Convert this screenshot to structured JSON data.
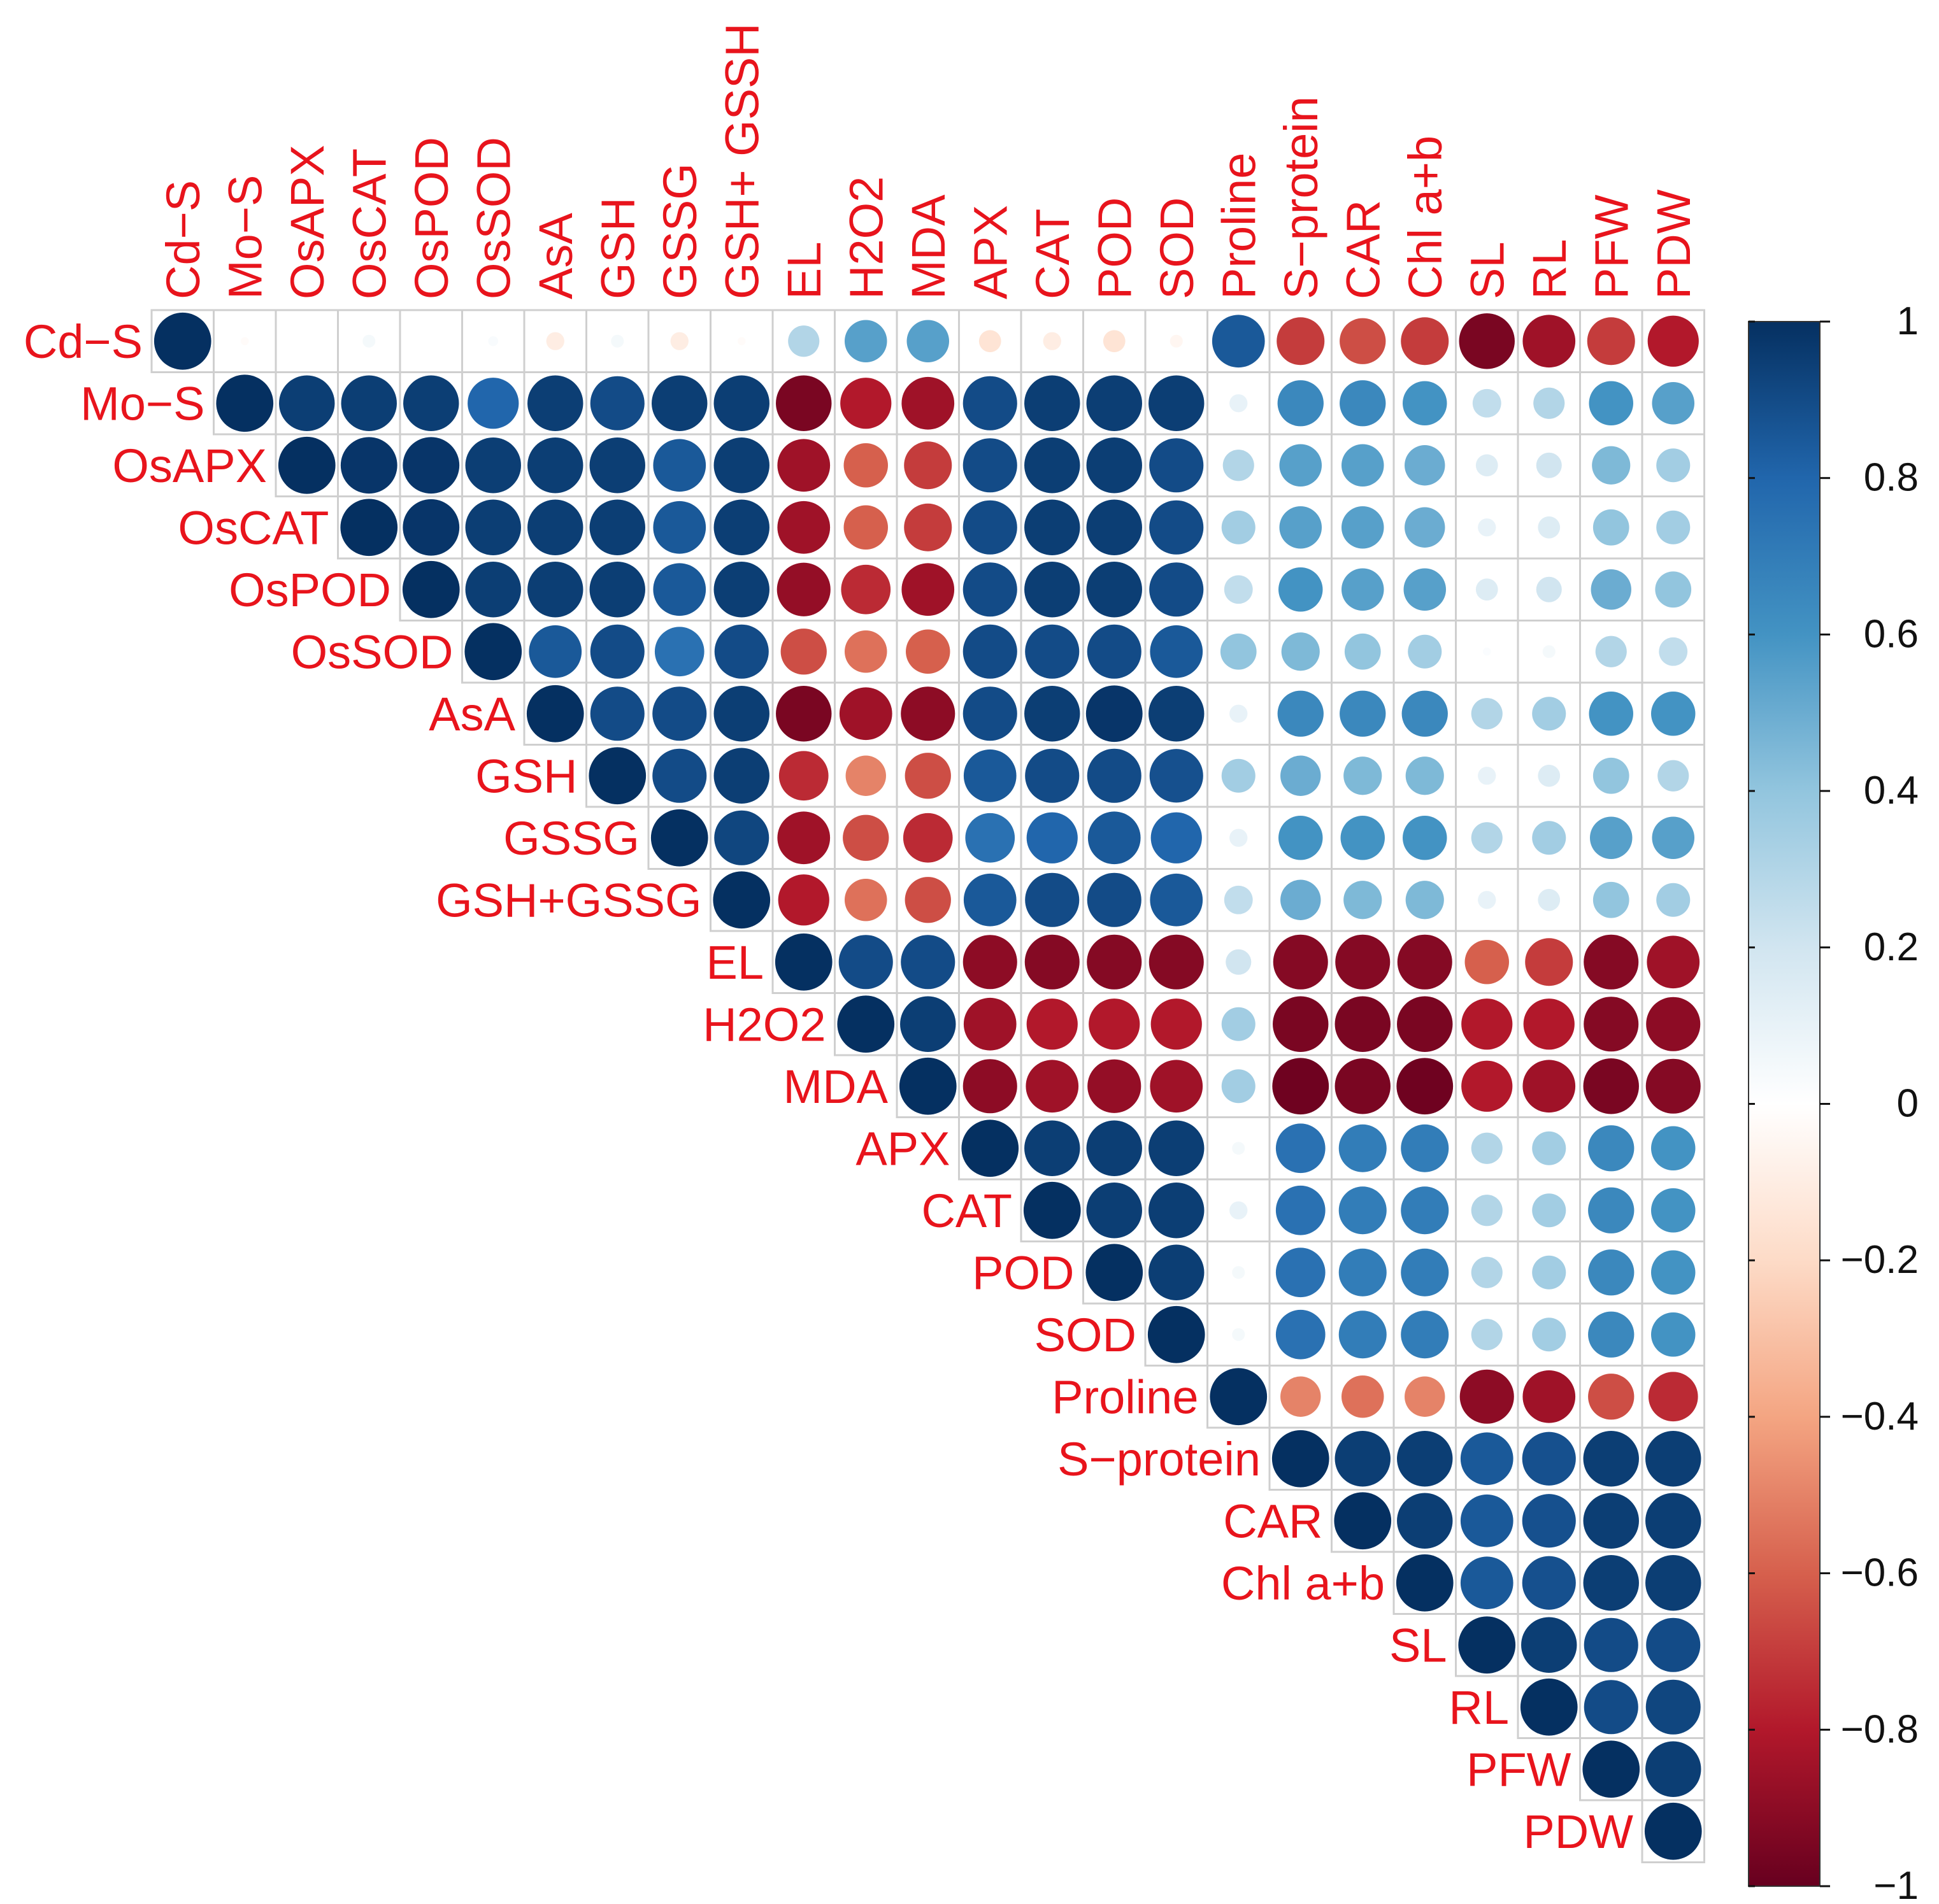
{
  "chart_data": {
    "type": "heatmap",
    "style": "corrplot-upper-circle",
    "labels": [
      "Cd−S",
      "Mo−S",
      "OsAPX",
      "OsCAT",
      "OsPOD",
      "OsSOD",
      "AsA",
      "GSH",
      "GSSG",
      "GSH+GSSG",
      "EL",
      "H2O2",
      "MDA",
      "APX",
      "CAT",
      "POD",
      "SOD",
      "Proline",
      "S−protein",
      "CAR",
      "Chl a+b",
      "SL",
      "RL",
      "PFW",
      "PDW"
    ],
    "column_labels": [
      "Cd−S",
      "Mo−S",
      "OsAPX",
      "OsCAT",
      "OsPOD",
      "OsSOD",
      "AsA",
      "GSH",
      "GSSG",
      "GSH+ GSSH",
      "EL",
      "H2O2",
      "MDA",
      "APX",
      "CAT",
      "POD",
      "SOD",
      "Proline",
      "S−protein",
      "CAR",
      "Chl a+b",
      "SL",
      "RL",
      "PFW",
      "PDW"
    ],
    "values": [
      [
        1.0,
        -0.02,
        0.0,
        0.05,
        0.0,
        0.03,
        -0.1,
        0.05,
        -0.1,
        -0.02,
        0.3,
        0.55,
        0.55,
        -0.15,
        -0.1,
        -0.15,
        -0.05,
        0.85,
        -0.7,
        -0.65,
        -0.7,
        -0.95,
        -0.85,
        -0.7,
        -0.8
      ],
      [
        null,
        1.0,
        0.95,
        0.95,
        0.95,
        0.8,
        0.95,
        0.9,
        0.95,
        0.95,
        -0.95,
        -0.8,
        -0.85,
        0.9,
        0.95,
        0.95,
        0.95,
        0.1,
        0.65,
        0.65,
        0.6,
        0.25,
        0.3,
        0.6,
        0.55
      ],
      [
        null,
        null,
        1.0,
        0.98,
        0.98,
        0.95,
        0.95,
        0.95,
        0.85,
        0.95,
        -0.85,
        -0.6,
        -0.7,
        0.9,
        0.95,
        0.95,
        0.9,
        0.3,
        0.55,
        0.55,
        0.5,
        0.15,
        0.2,
        0.45,
        0.35
      ],
      [
        null,
        null,
        null,
        1.0,
        0.98,
        0.95,
        0.95,
        0.95,
        0.85,
        0.95,
        -0.85,
        -0.6,
        -0.7,
        0.9,
        0.95,
        0.95,
        0.9,
        0.35,
        0.55,
        0.55,
        0.5,
        0.1,
        0.15,
        0.4,
        0.35
      ],
      [
        null,
        null,
        null,
        null,
        1.0,
        0.95,
        0.95,
        0.95,
        0.85,
        0.95,
        -0.88,
        -0.75,
        -0.85,
        0.9,
        0.95,
        0.95,
        0.9,
        0.25,
        0.6,
        0.55,
        0.55,
        0.15,
        0.2,
        0.5,
        0.4
      ],
      [
        null,
        null,
        null,
        null,
        null,
        1.0,
        0.85,
        0.9,
        0.75,
        0.9,
        -0.65,
        -0.55,
        -0.6,
        0.9,
        0.9,
        0.9,
        0.85,
        0.4,
        0.45,
        0.4,
        0.35,
        0.02,
        0.05,
        0.3,
        0.25
      ],
      [
        null,
        null,
        null,
        null,
        null,
        null,
        1.0,
        0.9,
        0.9,
        0.95,
        -0.95,
        -0.85,
        -0.9,
        0.9,
        0.95,
        0.98,
        0.95,
        0.1,
        0.65,
        0.65,
        0.65,
        0.3,
        0.35,
        0.6,
        0.6
      ],
      [
        null,
        null,
        null,
        null,
        null,
        null,
        null,
        1.0,
        0.9,
        0.95,
        -0.75,
        -0.5,
        -0.65,
        0.85,
        0.9,
        0.9,
        0.88,
        0.35,
        0.5,
        0.45,
        0.45,
        0.1,
        0.15,
        0.4,
        0.3
      ],
      [
        null,
        null,
        null,
        null,
        null,
        null,
        null,
        null,
        1.0,
        0.92,
        -0.85,
        -0.65,
        -0.75,
        0.75,
        0.8,
        0.85,
        0.8,
        0.1,
        0.6,
        0.6,
        0.6,
        0.3,
        0.35,
        0.55,
        0.55
      ],
      [
        null,
        null,
        null,
        null,
        null,
        null,
        null,
        null,
        null,
        1.0,
        -0.8,
        -0.55,
        -0.65,
        0.85,
        0.9,
        0.9,
        0.85,
        0.25,
        0.5,
        0.45,
        0.45,
        0.1,
        0.15,
        0.4,
        0.35
      ],
      [
        null,
        null,
        null,
        null,
        null,
        null,
        null,
        null,
        null,
        null,
        1.0,
        0.9,
        0.9,
        -0.9,
        -0.92,
        -0.92,
        -0.92,
        0.2,
        -0.92,
        -0.92,
        -0.92,
        -0.6,
        -0.7,
        -0.92,
        -0.85
      ],
      [
        null,
        null,
        null,
        null,
        null,
        null,
        null,
        null,
        null,
        null,
        null,
        1.0,
        0.95,
        -0.85,
        -0.8,
        -0.8,
        -0.8,
        0.35,
        -0.95,
        -0.95,
        -0.95,
        -0.8,
        -0.8,
        -0.92,
        -0.9
      ],
      [
        null,
        null,
        null,
        null,
        null,
        null,
        null,
        null,
        null,
        null,
        null,
        null,
        1.0,
        -0.9,
        -0.85,
        -0.88,
        -0.85,
        0.35,
        -0.98,
        -0.95,
        -0.98,
        -0.8,
        -0.85,
        -0.95,
        -0.92
      ],
      [
        null,
        null,
        null,
        null,
        null,
        null,
        null,
        null,
        null,
        null,
        null,
        null,
        null,
        1.0,
        0.95,
        0.95,
        0.95,
        0.05,
        0.75,
        0.7,
        0.7,
        0.3,
        0.35,
        0.65,
        0.6
      ],
      [
        null,
        null,
        null,
        null,
        null,
        null,
        null,
        null,
        null,
        null,
        null,
        null,
        null,
        null,
        1.0,
        0.95,
        0.95,
        0.1,
        0.75,
        0.7,
        0.7,
        0.3,
        0.35,
        0.65,
        0.6
      ],
      [
        null,
        null,
        null,
        null,
        null,
        null,
        null,
        null,
        null,
        null,
        null,
        null,
        null,
        null,
        null,
        1.0,
        0.95,
        0.05,
        0.75,
        0.7,
        0.7,
        0.3,
        0.35,
        0.65,
        0.6
      ],
      [
        null,
        null,
        null,
        null,
        null,
        null,
        null,
        null,
        null,
        null,
        null,
        null,
        null,
        null,
        null,
        null,
        1.0,
        0.05,
        0.75,
        0.7,
        0.7,
        0.3,
        0.35,
        0.65,
        0.6
      ],
      [
        null,
        null,
        null,
        null,
        null,
        null,
        null,
        null,
        null,
        null,
        null,
        null,
        null,
        null,
        null,
        null,
        null,
        1.0,
        -0.5,
        -0.55,
        -0.5,
        -0.9,
        -0.85,
        -0.65,
        -0.75
      ],
      [
        null,
        null,
        null,
        null,
        null,
        null,
        null,
        null,
        null,
        null,
        null,
        null,
        null,
        null,
        null,
        null,
        null,
        null,
        1.0,
        0.95,
        0.95,
        0.85,
        0.88,
        0.95,
        0.95
      ],
      [
        null,
        null,
        null,
        null,
        null,
        null,
        null,
        null,
        null,
        null,
        null,
        null,
        null,
        null,
        null,
        null,
        null,
        null,
        null,
        1.0,
        0.95,
        0.85,
        0.88,
        0.95,
        0.95
      ],
      [
        null,
        null,
        null,
        null,
        null,
        null,
        null,
        null,
        null,
        null,
        null,
        null,
        null,
        null,
        null,
        null,
        null,
        null,
        null,
        null,
        1.0,
        0.85,
        0.88,
        0.95,
        0.95
      ],
      [
        null,
        null,
        null,
        null,
        null,
        null,
        null,
        null,
        null,
        null,
        null,
        null,
        null,
        null,
        null,
        null,
        null,
        null,
        null,
        null,
        null,
        1.0,
        0.95,
        0.9,
        0.9
      ],
      [
        null,
        null,
        null,
        null,
        null,
        null,
        null,
        null,
        null,
        null,
        null,
        null,
        null,
        null,
        null,
        null,
        null,
        null,
        null,
        null,
        null,
        null,
        1.0,
        0.9,
        0.92
      ],
      [
        null,
        null,
        null,
        null,
        null,
        null,
        null,
        null,
        null,
        null,
        null,
        null,
        null,
        null,
        null,
        null,
        null,
        null,
        null,
        null,
        null,
        null,
        null,
        1.0,
        0.95
      ],
      [
        null,
        null,
        null,
        null,
        null,
        null,
        null,
        null,
        null,
        null,
        null,
        null,
        null,
        null,
        null,
        null,
        null,
        null,
        null,
        null,
        null,
        null,
        null,
        null,
        1.0
      ]
    ],
    "colorbar": {
      "range": [
        -1,
        1
      ],
      "ticks": [
        1,
        0.8,
        0.6,
        0.4,
        0.2,
        0,
        -0.2,
        -0.4,
        -0.6,
        -0.8,
        -1
      ],
      "tick_labels": [
        "1",
        "0.8",
        "0.6",
        "0.4",
        "0.2",
        "0",
        "−0.2",
        "−0.4",
        "−0.6",
        "−0.8",
        "−1"
      ]
    },
    "colors": {
      "negative_end": "#67001f",
      "neutral": "#ffffff",
      "positive_end": "#053061",
      "label_color": "#e8141c",
      "grid_color": "#cfcfcf"
    }
  }
}
